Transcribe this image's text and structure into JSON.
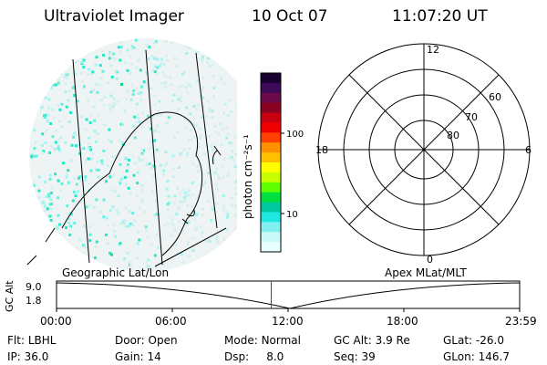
{
  "header": {
    "instrument": "Ultraviolet Imager",
    "date": "10 Oct 07",
    "time": "11:07:20 UT"
  },
  "colorbar": {
    "unit_label": "photon cm⁻²s⁻¹",
    "ticks": [
      "100",
      "10"
    ],
    "colors": [
      "#1a0030",
      "#3d0a5a",
      "#6a0a4a",
      "#8a0020",
      "#c80010",
      "#f00000",
      "#ff4000",
      "#ff9000",
      "#ffc000",
      "#ffff00",
      "#c8ff00",
      "#60ff00",
      "#00e040",
      "#00c8a0",
      "#20e8e0",
      "#80f0f0",
      "#c8f8f8",
      "#e8ffff"
    ]
  },
  "polar_plot": {
    "mlt_labels": {
      "top": "12",
      "left": "18",
      "right": "6",
      "bottom": "0"
    },
    "lat_labels": [
      "60",
      "70",
      "80"
    ]
  },
  "map_labels": {
    "left": "Geographic Lat/Lon",
    "right": "Apex MLat/MLT"
  },
  "altitude_panel": {
    "axis_label": "GC Alt",
    "y_ticks": [
      "9.0",
      "1.8"
    ],
    "x_ticks": [
      "00:00",
      "06:00",
      "12:00",
      "18:00",
      "23:59"
    ],
    "marker_time": "11:07",
    "marker_color": "#ff0000"
  },
  "status": {
    "row1": [
      {
        "label": "Flt:",
        "value": "LBHL"
      },
      {
        "label": "Door:",
        "value": "Open"
      },
      {
        "label": "Mode:",
        "value": "Normal"
      },
      {
        "label": "GC Alt:",
        "value": "3.9 Re"
      },
      {
        "label": "GLat:",
        "value": "-26.0"
      }
    ],
    "row2": [
      {
        "label": "IP:",
        "value": "36.0"
      },
      {
        "label": "Gain:",
        "value": "14"
      },
      {
        "label": "Dsp:",
        "value": "8.0"
      },
      {
        "label": "Seq:",
        "value": "39"
      },
      {
        "label": "GLon:",
        "value": "146.7"
      }
    ]
  }
}
